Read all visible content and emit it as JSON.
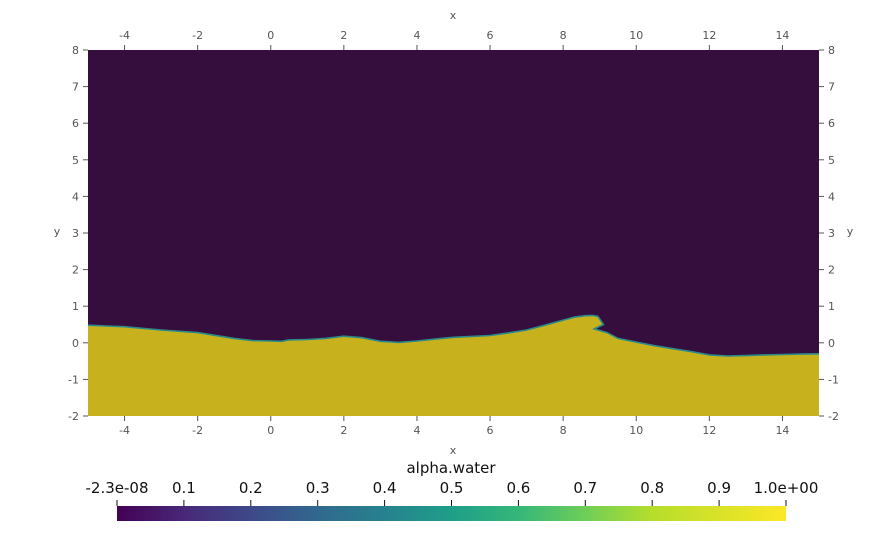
{
  "chart_data": {
    "type": "heatmap",
    "field": "alpha.water",
    "xlabel": "x",
    "ylabel": "y",
    "xlim": [
      -5,
      15
    ],
    "ylim": [
      -2,
      8
    ],
    "x_ticks": [
      -4,
      -2,
      0,
      2,
      4,
      6,
      8,
      10,
      12,
      14
    ],
    "y_ticks": [
      -2,
      -1,
      0,
      1,
      2,
      3,
      4,
      5,
      6,
      7,
      8
    ],
    "colormap": "viridis",
    "colors": {
      "air": "#360e3e",
      "water": "#c7b11d"
    },
    "interface": {
      "x": [
        -5,
        -4.5,
        -4,
        -3,
        -2,
        -1,
        -0.5,
        0,
        0.3,
        0.5,
        1,
        1.5,
        2,
        2.5,
        3,
        3.5,
        4,
        4.5,
        5,
        6,
        6.5,
        7,
        7.5,
        8,
        8.3,
        8.6,
        8.8,
        8.95,
        9.1,
        8.85,
        9.2,
        9.5,
        10,
        10.5,
        11,
        11.5,
        12,
        12.5,
        13,
        13.5,
        14,
        14.5,
        15
      ],
      "y": [
        0.48,
        0.46,
        0.44,
        0.35,
        0.28,
        0.12,
        0.06,
        0.05,
        0.04,
        0.08,
        0.09,
        0.12,
        0.18,
        0.14,
        0.04,
        0.01,
        0.05,
        0.1,
        0.15,
        0.2,
        0.27,
        0.35,
        0.48,
        0.62,
        0.7,
        0.74,
        0.75,
        0.72,
        0.5,
        0.38,
        0.28,
        0.12,
        0.02,
        -0.08,
        -0.16,
        -0.24,
        -0.33,
        -0.36,
        -0.35,
        -0.33,
        -0.32,
        -0.31,
        -0.3
      ]
    },
    "colorbar": {
      "title": "alpha.water",
      "labels": [
        "-2.3e-08",
        "0.1",
        "0.2",
        "0.3",
        "0.4",
        "0.5",
        "0.6",
        "0.7",
        "0.8",
        "0.9",
        "1.0e+00"
      ],
      "range": [
        -2.3e-08,
        1.0
      ]
    }
  }
}
